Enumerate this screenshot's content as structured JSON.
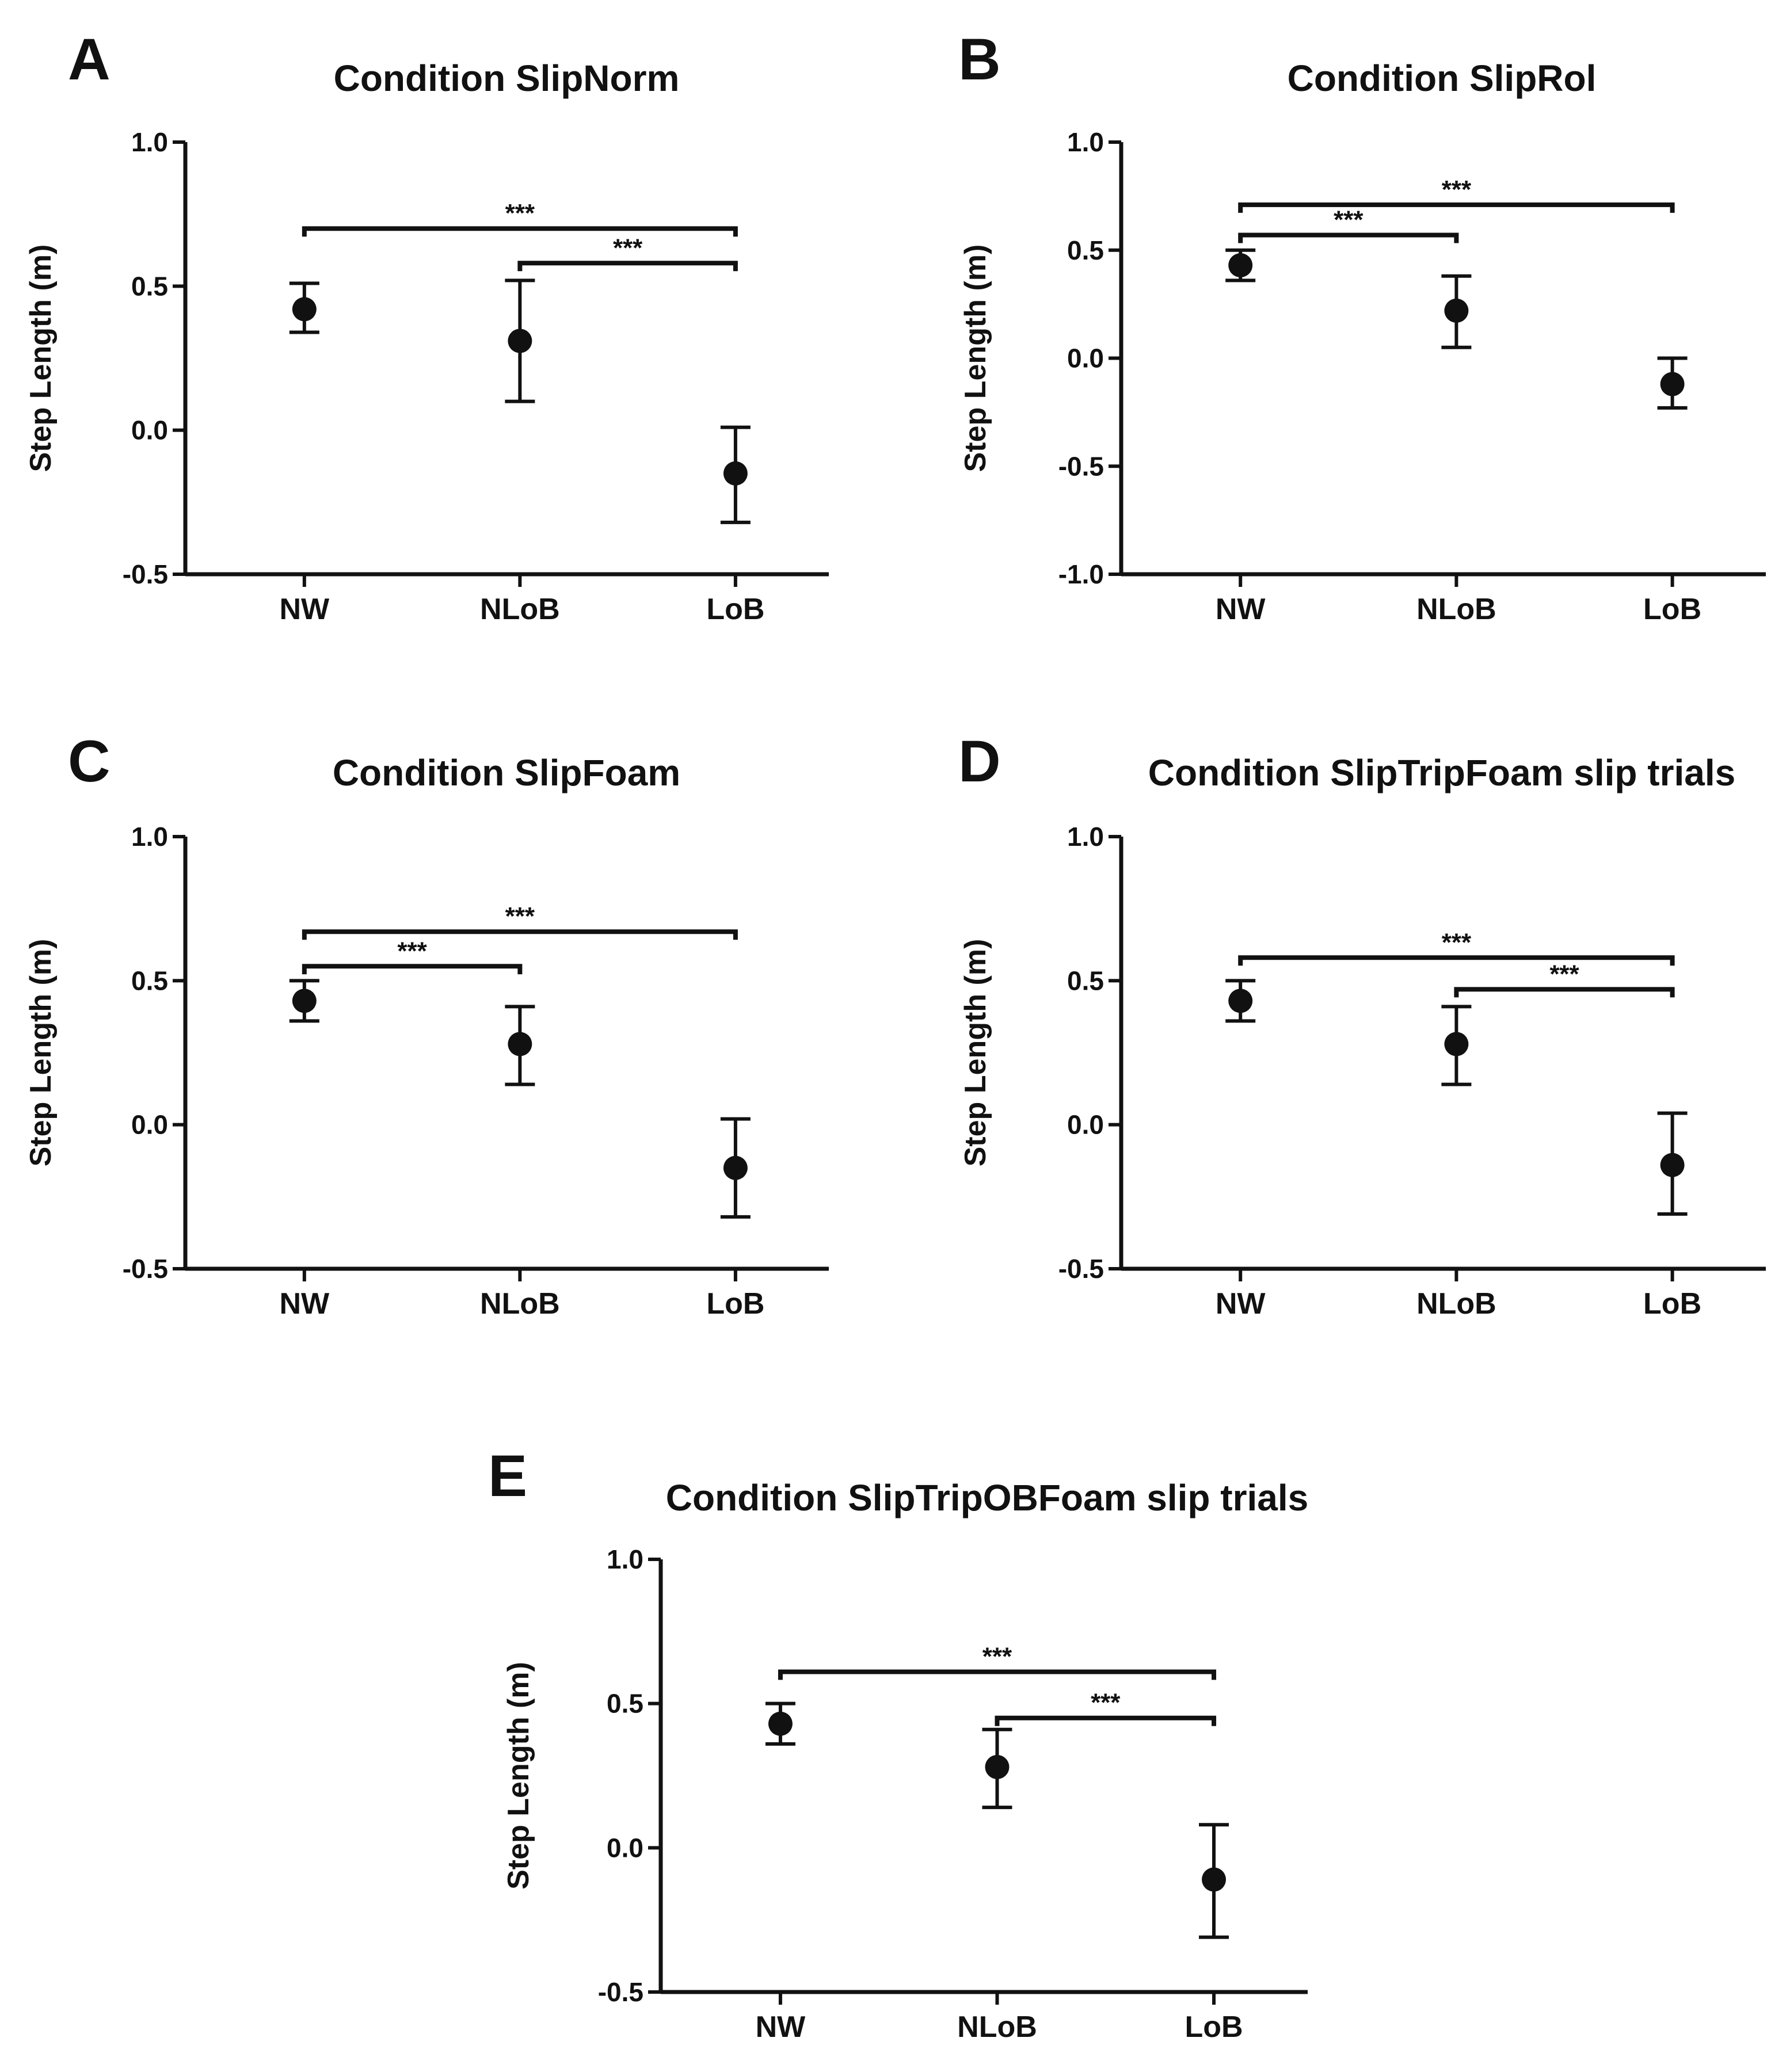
{
  "chart_data": [
    {
      "type": "scatter",
      "panel_letter": "A",
      "title": "Condition SlipNorm",
      "xlabel": "",
      "ylabel": "Step Length (m)",
      "categories": [
        "NW",
        "NLoB",
        "LoB"
      ],
      "ylim": [
        -0.5,
        1.0
      ],
      "yticks": [
        -0.5,
        0.0,
        0.5,
        1.0
      ],
      "ytick_labels": [
        "-0.5",
        "0.0",
        "0.5",
        "1.0"
      ],
      "series": [
        {
          "name": "Step Length",
          "values": [
            0.42,
            0.31,
            -0.15
          ],
          "err_low": [
            0.34,
            0.1,
            -0.32
          ],
          "err_high": [
            0.51,
            0.52,
            0.01
          ]
        }
      ],
      "significance": [
        {
          "from": "NW",
          "to": "LoB",
          "y": 0.7,
          "label": "***"
        },
        {
          "from": "NLoB",
          "to": "LoB",
          "y": 0.58,
          "label": "***"
        }
      ]
    },
    {
      "type": "scatter",
      "panel_letter": "B",
      "title": "Condition SlipRol",
      "xlabel": "",
      "ylabel": "Step Length (m)",
      "categories": [
        "NW",
        "NLoB",
        "LoB"
      ],
      "ylim": [
        -1.0,
        1.0
      ],
      "yticks": [
        -1.0,
        -0.5,
        0.0,
        0.5,
        1.0
      ],
      "ytick_labels": [
        "-1.0",
        "-0.5",
        "0.0",
        "0.5",
        "1.0"
      ],
      "series": [
        {
          "name": "Step Length",
          "values": [
            0.43,
            0.22,
            -0.12
          ],
          "err_low": [
            0.36,
            0.05,
            -0.23
          ],
          "err_high": [
            0.5,
            0.38,
            0.0
          ]
        }
      ],
      "significance": [
        {
          "from": "NW",
          "to": "LoB",
          "y": 0.71,
          "label": "***"
        },
        {
          "from": "NW",
          "to": "NLoB",
          "y": 0.57,
          "label": "***"
        }
      ]
    },
    {
      "type": "scatter",
      "panel_letter": "C",
      "title": "Condition SlipFoam",
      "xlabel": "",
      "ylabel": "Step Length (m)",
      "categories": [
        "NW",
        "NLoB",
        "LoB"
      ],
      "ylim": [
        -0.5,
        1.0
      ],
      "yticks": [
        -0.5,
        0.0,
        0.5,
        1.0
      ],
      "ytick_labels": [
        "-0.5",
        "0.0",
        "0.5",
        "1.0"
      ],
      "series": [
        {
          "name": "Step Length",
          "values": [
            0.43,
            0.28,
            -0.15
          ],
          "err_low": [
            0.36,
            0.14,
            -0.32
          ],
          "err_high": [
            0.5,
            0.41,
            0.02
          ]
        }
      ],
      "significance": [
        {
          "from": "NW",
          "to": "LoB",
          "y": 0.67,
          "label": "***"
        },
        {
          "from": "NW",
          "to": "NLoB",
          "y": 0.55,
          "label": "***"
        }
      ]
    },
    {
      "type": "scatter",
      "panel_letter": "D",
      "title": "Condition SlipTripFoam slip trials",
      "xlabel": "",
      "ylabel": "Step Length (m)",
      "categories": [
        "NW",
        "NLoB",
        "LoB"
      ],
      "ylim": [
        -0.5,
        1.0
      ],
      "yticks": [
        -0.5,
        0.0,
        0.5,
        1.0
      ],
      "ytick_labels": [
        "-0.5",
        "0.0",
        "0.5",
        "1.0"
      ],
      "series": [
        {
          "name": "Step Length",
          "values": [
            0.43,
            0.28,
            -0.14
          ],
          "err_low": [
            0.36,
            0.14,
            -0.31
          ],
          "err_high": [
            0.5,
            0.41,
            0.04
          ]
        }
      ],
      "significance": [
        {
          "from": "NW",
          "to": "LoB",
          "y": 0.58,
          "label": "***"
        },
        {
          "from": "NLoB",
          "to": "LoB",
          "y": 0.47,
          "label": "***"
        }
      ]
    },
    {
      "type": "scatter",
      "panel_letter": "E",
      "title": "Condition SlipTripOBFoam slip trials",
      "xlabel": "",
      "ylabel": "Step Length (m)",
      "categories": [
        "NW",
        "NLoB",
        "LoB"
      ],
      "ylim": [
        -0.5,
        1.0
      ],
      "yticks": [
        -0.5,
        0.0,
        0.5,
        1.0
      ],
      "ytick_labels": [
        "-0.5",
        "0.0",
        "0.5",
        "1.0"
      ],
      "series": [
        {
          "name": "Step Length",
          "values": [
            0.43,
            0.28,
            -0.11
          ],
          "err_low": [
            0.36,
            0.14,
            -0.31
          ],
          "err_high": [
            0.5,
            0.41,
            0.08
          ]
        }
      ],
      "significance": [
        {
          "from": "NW",
          "to": "LoB",
          "y": 0.61,
          "label": "***"
        },
        {
          "from": "NLoB",
          "to": "LoB",
          "y": 0.45,
          "label": "***"
        }
      ]
    }
  ]
}
